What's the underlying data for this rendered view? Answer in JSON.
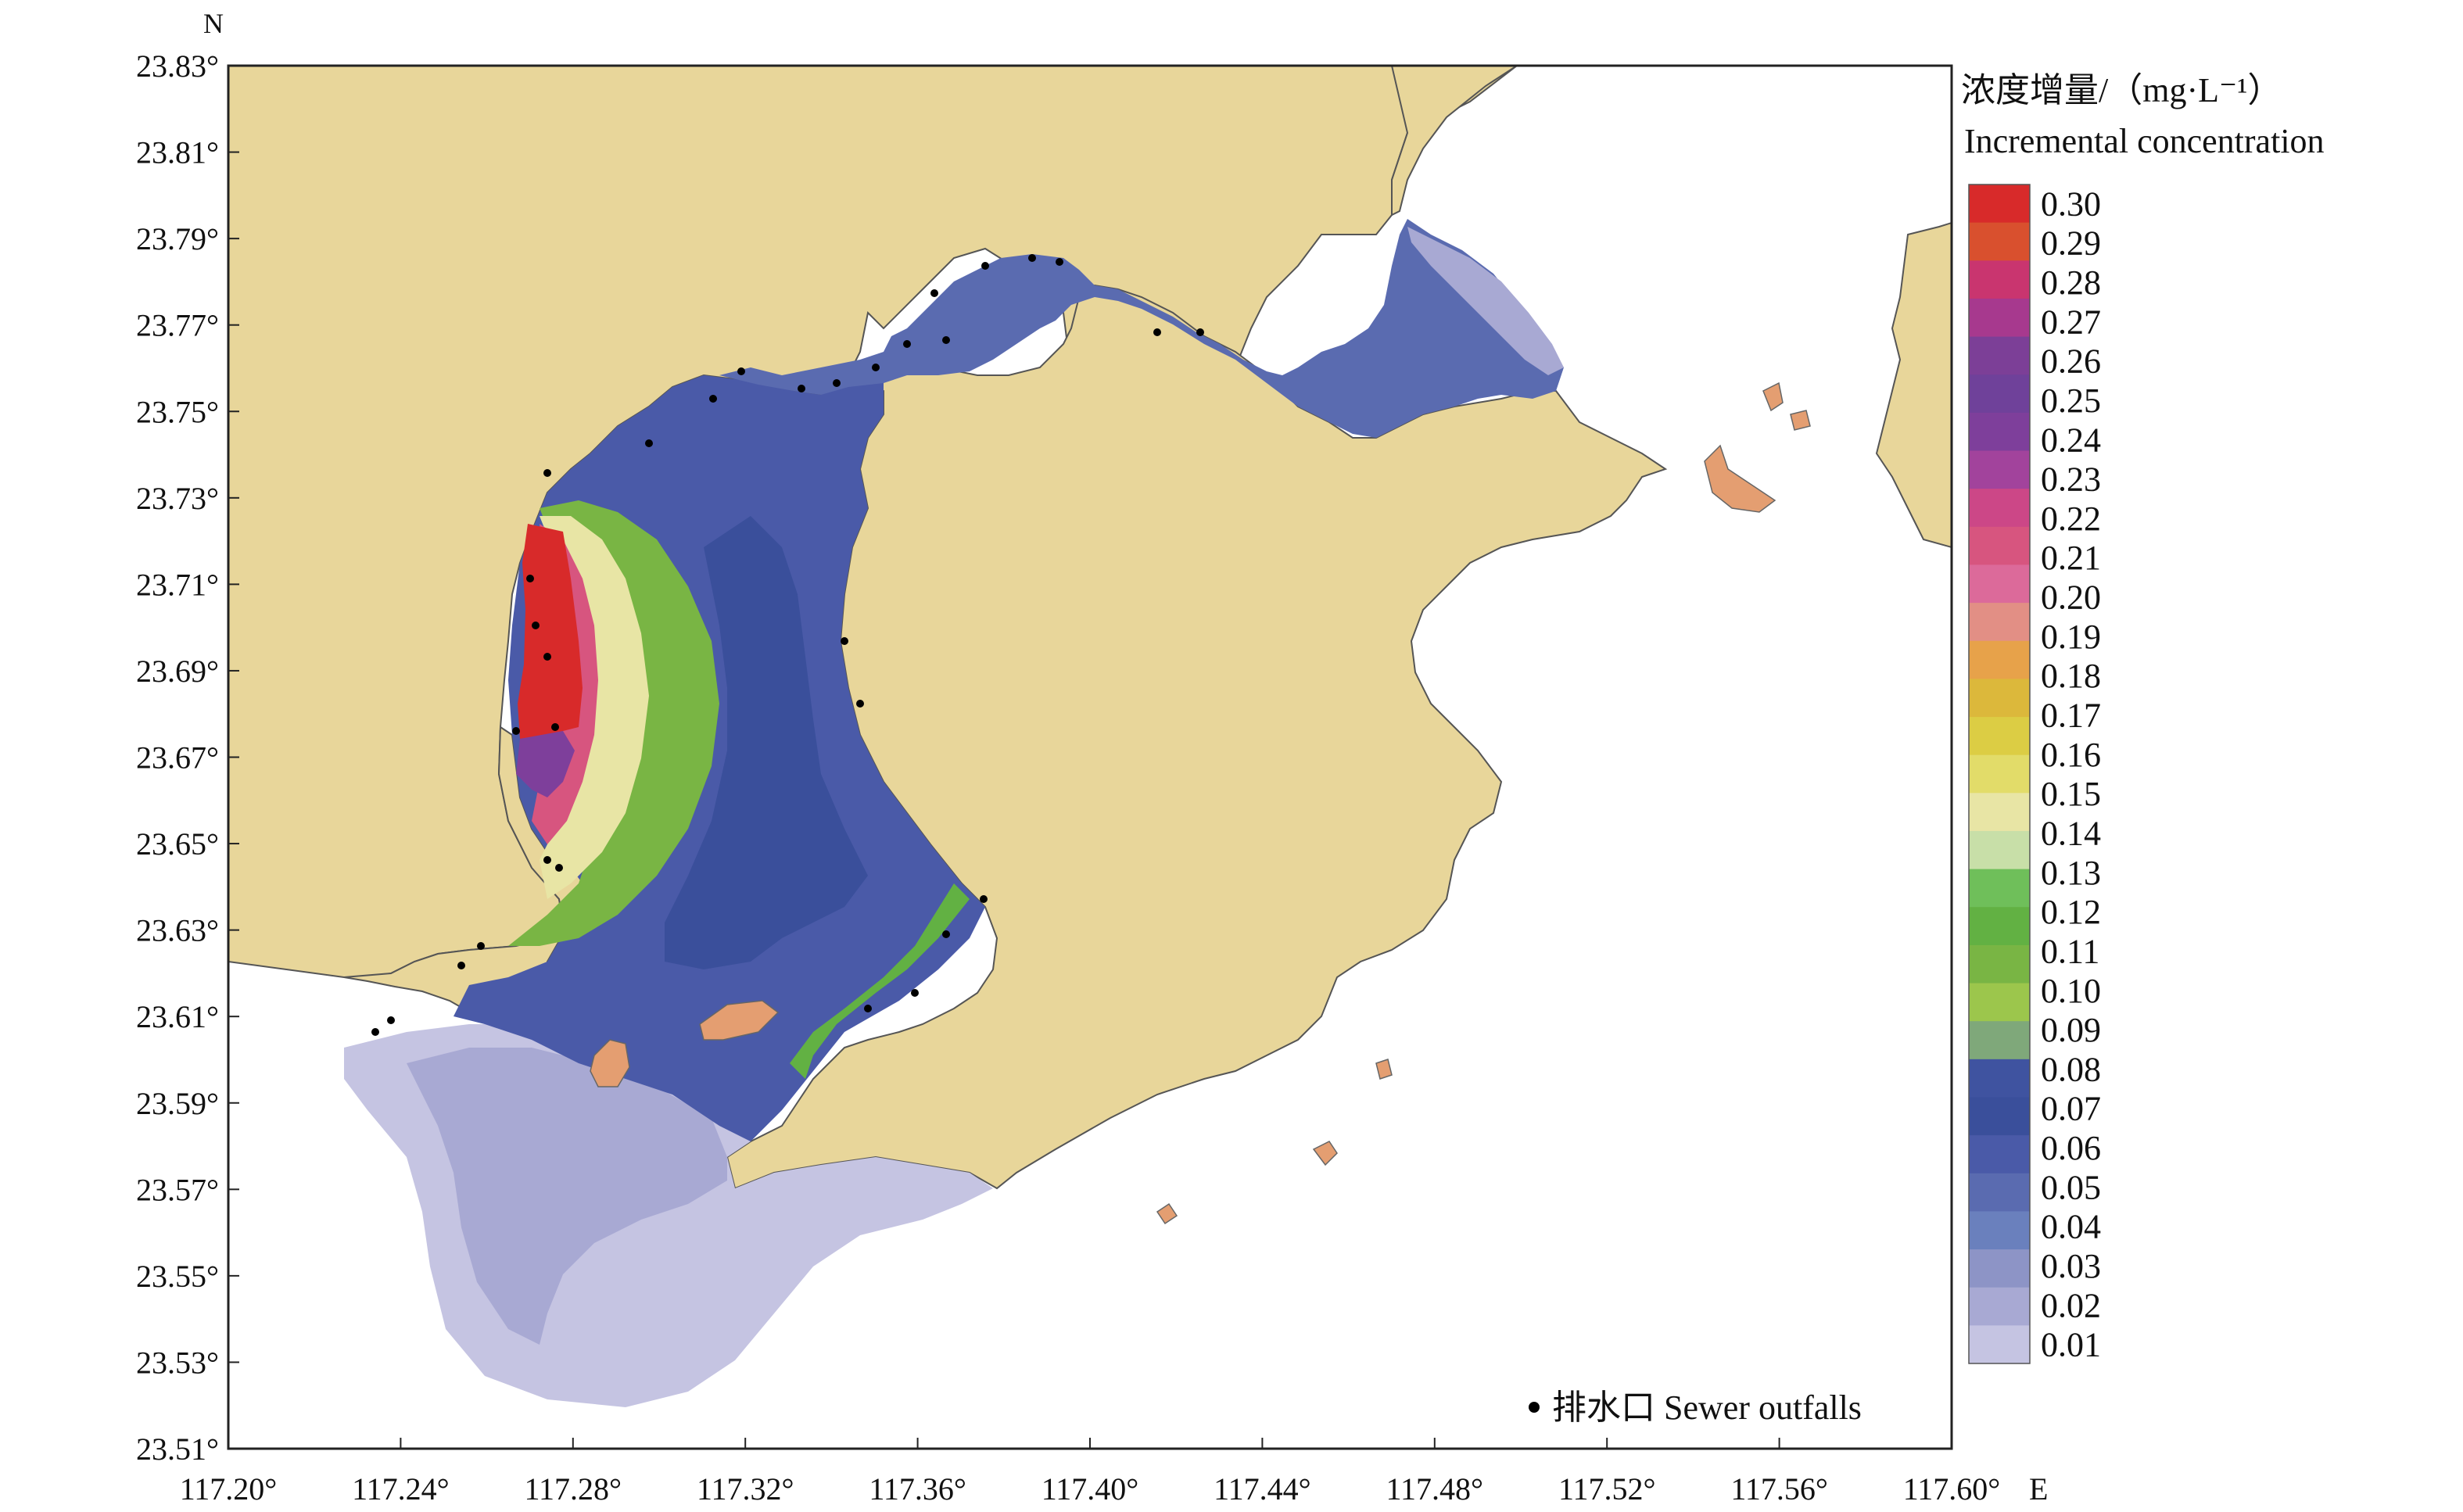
{
  "axes": {
    "north_label": "N",
    "east_label": "E",
    "lat_ticks": [
      "23.83°",
      "23.81°",
      "23.79°",
      "23.77°",
      "23.75°",
      "23.73°",
      "23.71°",
      "23.69°",
      "23.67°",
      "23.65°",
      "23.63°",
      "23.61°",
      "23.59°",
      "23.57°",
      "23.55°",
      "23.53°",
      "23.51°"
    ],
    "lon_ticks": [
      "117.20°",
      "117.24°",
      "117.28°",
      "117.32°",
      "117.36°",
      "117.40°",
      "117.44°",
      "117.48°",
      "117.52°",
      "117.56°",
      "117.60°"
    ]
  },
  "legend": {
    "title_cn": "浓度增量/（mg·L⁻¹）",
    "title_en": "Incremental concentration",
    "levels": [
      "0.30",
      "0.29",
      "0.28",
      "0.27",
      "0.26",
      "0.25",
      "0.24",
      "0.23",
      "0.22",
      "0.21",
      "0.20",
      "0.19",
      "0.18",
      "0.17",
      "0.16",
      "0.15",
      "0.14",
      "0.13",
      "0.12",
      "0.11",
      "0.10",
      "0.09",
      "0.08",
      "0.07",
      "0.06",
      "0.05",
      "0.04",
      "0.03",
      "0.02",
      "0.01"
    ],
    "colors": [
      "#d82a2a",
      "#d9502e",
      "#c9356f",
      "#a7398e",
      "#7c3f97",
      "#6f419a",
      "#7e3f9b",
      "#a2439c",
      "#cc4787",
      "#d7557f",
      "#dc6a9a",
      "#e28f85",
      "#e7a24a",
      "#dcb83b",
      "#dccd44",
      "#e2dc69",
      "#e8e5a5",
      "#c8dfa8",
      "#6fbf5a",
      "#62b143",
      "#79b544",
      "#9cc64c",
      "#7fa87a",
      "#3f53a0",
      "#3a4f9b",
      "#4a5aa8",
      "#5a6bb0",
      "#6a80bd",
      "#8d94c6",
      "#a8a9d3",
      "#c5c4e2"
    ],
    "outfall_label": "排水口 Sewer outfalls"
  },
  "colors": {
    "land": "#e8d69a",
    "island": "#e49e71",
    "frame": "#222222"
  }
}
